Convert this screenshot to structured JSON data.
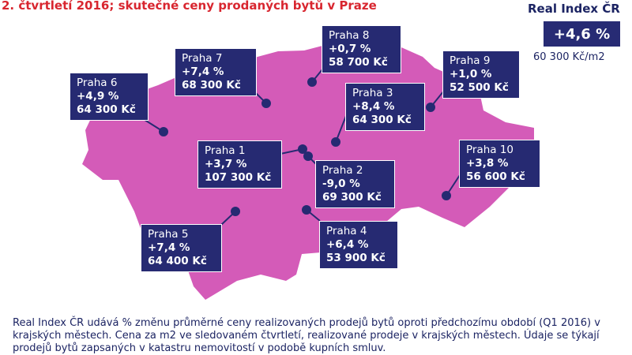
{
  "title": "2. čtvrtletí 2016; skutečné ceny prodaných bytů v Praze",
  "real_index": {
    "label": "Real Index ČR",
    "change": "+4,6 %",
    "price": "60 300 Kč/m2"
  },
  "districts": [
    {
      "name": "Praha 6",
      "change": "+4,9 %",
      "price": "64 300 Kč"
    },
    {
      "name": "Praha 7",
      "change": "+7,4 %",
      "price": "68 300 Kč"
    },
    {
      "name": "Praha 8",
      "change": "+0,7 %",
      "price": "58 700 Kč"
    },
    {
      "name": "Praha 9",
      "change": "+1,0 %",
      "price": "52 500 Kč"
    },
    {
      "name": "Praha 3",
      "change": "+8,4 %",
      "price": "64 300 Kč"
    },
    {
      "name": "Praha 1",
      "change": "+3,7 %",
      "price": "107 300 Kč"
    },
    {
      "name": "Praha 2",
      "change": "-9,0 %",
      "price": "69 300 Kč"
    },
    {
      "name": "Praha 10",
      "change": "+3,8 %",
      "price": "56 600 Kč"
    },
    {
      "name": "Praha 5",
      "change": "+7,4 %",
      "price": "64 400 Kč"
    },
    {
      "name": "Praha 4",
      "change": "+6,4 %",
      "price": "53 900 Kč"
    }
  ],
  "footer": "Real Index ČR udává % změnu průměrné ceny realizovaných prodejů bytů oproti předchozímu období (Q1 2016) v krajských městech. Cena za m2 ve sledovaném čtvrtletí, realizované prodeje v krajských městech. Údaje se týkají prodejů bytů zapsaných v katastru nemovitostí v podobě kupních smluv.",
  "colors": {
    "map_fill": "#d45bb8",
    "box": "#262a72",
    "title": "#d8262f",
    "text": "#1c2463"
  }
}
